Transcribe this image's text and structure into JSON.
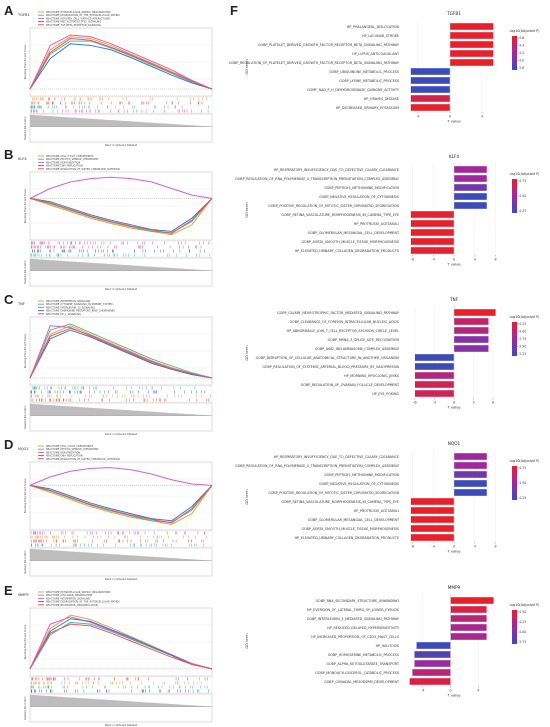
{
  "panel_letters": [
    "A",
    "B",
    "C",
    "D",
    "E",
    "F"
  ],
  "colors": {
    "gsea_lines": [
      "#e8a33d",
      "#4cb8a8",
      "#d65fd0",
      "#3c78c8",
      "#e55a5a"
    ],
    "bar_gradient": [
      "#e8202c",
      "#a0289c",
      "#3c4bb8"
    ]
  },
  "chart_data": [
    {
      "type": "line",
      "panel": "A",
      "title": "TGFB1",
      "ylabel_top": "Running Enrichment Score",
      "ylabel_bottom": "Ranked list metric",
      "xlabel": "Rank in Ordered Dataset",
      "legend_position": "top-left",
      "series": [
        {
          "name": "REACTOME_EXTRACELLULAR_MATRIX_ORGANIZATION",
          "values": [
            0,
            0.45,
            0.6,
            0.58,
            0.5,
            0.4,
            0.3,
            0.2,
            0.1,
            0
          ]
        },
        {
          "name": "REACTOME_DEGRADATION_OF_THE_EXTRACELLULAR_MATRIX",
          "values": [
            0,
            0.4,
            0.55,
            0.55,
            0.47,
            0.38,
            0.28,
            0.18,
            0.08,
            0
          ]
        },
        {
          "name": "REACTOME_INTEGRIN_CELL_SURFACE_INTERACTIONS",
          "values": [
            0,
            0.5,
            0.62,
            0.6,
            0.52,
            0.42,
            0.32,
            0.22,
            0.1,
            0
          ]
        },
        {
          "name": "REACTOME_MET_ACTIVATES_PTK2_SIGNALING",
          "values": [
            0,
            0.35,
            0.52,
            0.5,
            0.45,
            0.36,
            0.26,
            0.16,
            0.07,
            0
          ]
        },
        {
          "name": "REACTOME_TGF_BETA_RECEPTOR_SIGNALING",
          "values": [
            0,
            0.42,
            0.58,
            0.56,
            0.48,
            0.39,
            0.29,
            0.19,
            0.09,
            0
          ]
        }
      ]
    },
    {
      "type": "line",
      "panel": "B",
      "title": "KLF4",
      "ylabel_top": "Running Enrichment Score",
      "ylabel_bottom": "Ranked list metric",
      "xlabel": "Rank in Ordered Dataset",
      "legend_position": "top-left",
      "series": [
        {
          "name": "REACTOME_CELL_CYCLE_CHECKPOINTS",
          "values": [
            0,
            -0.1,
            -0.2,
            -0.3,
            -0.38,
            -0.45,
            -0.5,
            -0.55,
            -0.4,
            0
          ]
        },
        {
          "name": "REACTOME_MITOTIC_SPINDLE_CHECKPOINT",
          "values": [
            0,
            -0.08,
            -0.18,
            -0.28,
            -0.36,
            -0.43,
            -0.5,
            -0.52,
            -0.35,
            0
          ]
        },
        {
          "name": "REACTOME_KERATINIZATION",
          "values": [
            0,
            0.15,
            0.25,
            0.3,
            0.32,
            0.3,
            0.25,
            0.15,
            0.05,
            0
          ]
        },
        {
          "name": "REACTOME_DNA_REPLICATION",
          "values": [
            0,
            -0.05,
            -0.15,
            -0.25,
            -0.33,
            -0.4,
            -0.47,
            -0.5,
            -0.3,
            0
          ]
        },
        {
          "name": "REACTOME_RESOLUTION_OF_SISTER_CHROMATID_COHESION",
          "values": [
            0,
            -0.07,
            -0.17,
            -0.27,
            -0.35,
            -0.42,
            -0.48,
            -0.53,
            -0.33,
            0
          ]
        }
      ]
    },
    {
      "type": "line",
      "panel": "C",
      "title": "TNF",
      "ylabel_top": "Running Enrichment Score",
      "ylabel_bottom": "Ranked list metric",
      "xlabel": "Rank in Ordered Dataset",
      "legend_position": "top-left",
      "series": [
        {
          "name": "REACTOME_INTERFERON_SIGNALING",
          "values": [
            0,
            0.5,
            0.6,
            0.5,
            0.4,
            0.3,
            0.2,
            0.12,
            0.05,
            0
          ]
        },
        {
          "name": "REACTOME_CYTOKINE_SIGNALING_IN_IMMUNE_SYSTEM",
          "values": [
            0,
            0.55,
            0.62,
            0.52,
            0.42,
            0.32,
            0.22,
            0.14,
            0.06,
            0
          ]
        },
        {
          "name": "REACTOME_INTERLEUKIN_10_SIGNALING",
          "values": [
            0,
            0.6,
            0.58,
            0.48,
            0.38,
            0.28,
            0.18,
            0.1,
            0.04,
            0
          ]
        },
        {
          "name": "REACTOME_CHEMOKINE_RECEPTORS_BIND_CHEMOKINES",
          "values": [
            0,
            0.45,
            0.55,
            0.47,
            0.37,
            0.27,
            0.17,
            0.1,
            0.04,
            0
          ]
        },
        {
          "name": "REACTOME_PD_1_SIGNALING",
          "values": [
            0,
            0.48,
            0.57,
            0.49,
            0.39,
            0.29,
            0.19,
            0.11,
            0.05,
            0
          ]
        }
      ]
    },
    {
      "type": "line",
      "panel": "D",
      "title": "NQO1",
      "ylabel_top": "Running Enrichment Score",
      "ylabel_bottom": "Ranked list metric",
      "xlabel": "Rank in Ordered Dataset",
      "legend_position": "top-left",
      "series": [
        {
          "name": "REACTOME_CELL_CYCLE_CHECKPOINTS",
          "values": [
            0,
            -0.1,
            -0.2,
            -0.3,
            -0.38,
            -0.45,
            -0.5,
            -0.55,
            -0.4,
            0
          ]
        },
        {
          "name": "REACTOME_MITOTIC_SPINDLE_CHECKPOINT",
          "values": [
            0,
            -0.08,
            -0.18,
            -0.28,
            -0.36,
            -0.43,
            -0.5,
            -0.52,
            -0.35,
            0
          ]
        },
        {
          "name": "REACTOME_KERATINIZATION",
          "values": [
            0,
            0.12,
            0.2,
            0.24,
            0.25,
            0.22,
            0.16,
            0.08,
            0.02,
            0
          ]
        },
        {
          "name": "REACTOME_DNA_REPLICATION",
          "values": [
            0,
            -0.05,
            -0.15,
            -0.25,
            -0.33,
            -0.4,
            -0.47,
            -0.5,
            -0.3,
            0
          ]
        },
        {
          "name": "REACTOME_RESOLUTION_OF_SISTER_CHROMATID_COHESION",
          "values": [
            0,
            -0.07,
            -0.17,
            -0.27,
            -0.35,
            -0.42,
            -0.48,
            -0.53,
            -0.33,
            0
          ]
        }
      ]
    },
    {
      "type": "line",
      "panel": "E",
      "title": "MMP9",
      "ylabel_top": "Running Enrichment Score",
      "ylabel_bottom": "Ranked list metric",
      "xlabel": "Rank in Ordered Dataset",
      "legend_position": "top-left",
      "series": [
        {
          "name": "REACTOME_EXTRACELLULAR_MATRIX_ORGANIZATION",
          "values": [
            0,
            0.45,
            0.6,
            0.55,
            0.46,
            0.36,
            0.26,
            0.16,
            0.06,
            0
          ]
        },
        {
          "name": "REACTOME_COLLAGEN_DEGRADATION",
          "values": [
            0,
            0.38,
            0.52,
            0.5,
            0.42,
            0.33,
            0.24,
            0.15,
            0.05,
            0
          ]
        },
        {
          "name": "REACTOME_INTERFERON_SIGNALING",
          "values": [
            0,
            0.5,
            0.58,
            0.52,
            0.43,
            0.34,
            0.25,
            0.16,
            0.06,
            0
          ]
        },
        {
          "name": "REACTOME_DEGRADATION_OF_THE_EXTRACELLULAR_MATRIX",
          "values": [
            0,
            0.42,
            0.56,
            0.53,
            0.44,
            0.35,
            0.25,
            0.15,
            0.05,
            0
          ]
        },
        {
          "name": "REACTOME_NEUTROPHIL_DEGRANULATION",
          "values": [
            0,
            0.4,
            0.5,
            0.48,
            0.4,
            0.31,
            0.22,
            0.13,
            0.05,
            0
          ]
        }
      ]
    },
    {
      "type": "bar",
      "panel": "F",
      "title": "TGFB1",
      "xlabel": "T value",
      "ylabel": "GO term",
      "legend_title": "-log10(Adjusted P)",
      "legend_ticks": [
        "4.6",
        "4.4",
        "4.2",
        "4.0",
        "3.8"
      ],
      "xticks": [
        "-4",
        "0",
        "4"
      ],
      "xlim": [
        -6,
        7
      ],
      "categories": [
        "HP_PHALANGEAL_DISLOCATION",
        "HP_LACUNAR_STROKE",
        "GOBP_PLATELET_DERIVED_GROWTH_FACTOR_RECEPTOR_BETA_SIGNALING_PATHWAY",
        "HP_LUPUS_ANTICOAGULANT",
        "GOBP_REGULATION_OF_PLATELET_DERIVED_GROWTH_FACTOR_RECEPTOR_BETA_SIGNALING_PATHWAY",
        "GOBP_UBIQUINONE_METABOLIC_PROCESS",
        "GOBP_LYSINE_METABOLIC_PROCESS",
        "GOMF_NAD_P_H_DEHYDROGENASE_QUINONE_ACTIVITY",
        "HP_GRAVES_DISEASE",
        "HP_DECREASED_URINARY_POTASSIUM"
      ],
      "values": [
        5.4,
        5.4,
        5.4,
        5.4,
        5.4,
        -4.9,
        -4.9,
        -4.9,
        -4.9,
        -4.9
      ],
      "color_values": [
        4.6,
        4.6,
        4.6,
        4.6,
        4.6,
        3.9,
        3.9,
        3.9,
        4.5,
        4.6
      ]
    },
    {
      "type": "bar",
      "panel": "F",
      "title": "KLF4",
      "xlabel": "T value",
      "ylabel": "GO term",
      "legend_title": "-log10(Adjusted P)",
      "legend_ticks": [
        "4.75",
        "4.50",
        "4.25"
      ],
      "xticks": [
        "-8",
        "-4",
        "0",
        "4",
        "8"
      ],
      "xlim": [
        -10,
        10
      ],
      "categories": [
        "HP_RESPIRATORY_INSUFFICIENCY_DUE_TO_DEFECTIVE_CILIARY_CLEARANCE",
        "GOBP_REGULATION_OF_RNA_POLYMERASE_II_TRANSCRIPTION_PREINITIATION_COMPLEX_ASSEMBLY",
        "GOBP_PEPTIDYL_METHIONINE_MODIFICATION",
        "GOBP_NEGATIVE_REGULATION_OF_CYTOKINESIS",
        "GOBP_POSITIVE_REGULATION_OF_MITOTIC_SISTER_CHROMATID_SEGREGATION",
        "GOBP_RETINA_VASCULATURE_MORPHOGENESIS_IN_CAMERA_TYPE_EYE",
        "HP_PROTRUSIO_ACETABULI",
        "GOBP_GLOMERULAR_MESANGIAL_CELL_DEVELOPMENT",
        "GOBP_AORTA_SMOOTH_MUSCLE_TISSUE_MORPHOGENESIS",
        "HP_ELEVATED_URINARY_COLLAGEN_DEGRADATION_PRODUCTS"
      ],
      "values": [
        6.3,
        6.3,
        6.3,
        6.3,
        6.3,
        -8.3,
        -8.3,
        -8.3,
        -8.3,
        -8.3
      ],
      "color_values": [
        4.5,
        4.5,
        4.3,
        4.1,
        4.1,
        4.9,
        4.9,
        4.9,
        4.9,
        4.9
      ]
    },
    {
      "type": "bar",
      "panel": "F",
      "title": "TNF",
      "xlabel": "T value",
      "ylabel": "GO term",
      "legend_title": "-log10(Adjusted P)",
      "legend_ticks": [
        "4.25",
        "4.00",
        "3.75",
        "3.50",
        "3.25"
      ],
      "xticks": [
        "-6",
        "-3",
        "0",
        "3",
        "6"
      ],
      "xlim": [
        -8,
        8
      ],
      "categories": [
        "GOBP_CILIARY_NEUROTROPHIC_FACTOR_MEDIATED_SIGNALING_PATHWAY",
        "GOBP_CLEARANCE_OF_FOREIGN_INTRACELLULAR_NUCLEIC_ACIDS",
        "HP_ABNORMALLY_LOW_T_CELL_RECEPTOR_EXCISION_CIRCLE_LEVEL",
        "GOBP_MRNA_3_SPLICE_SITE_RECOGNITION",
        "GOBP_AIM2_INFLAMMASOME_COMPLEX_ASSEMBLY",
        "GOBP_DISRUPTION_OF_CELLULAR_ANATOMICAL_STRUCTURE_IN_ANOTHER_ORGANISM",
        "GOBP_REGULATION_OF_SYSTEMIC_ARTERIAL_BLOOD_PRESSURE_BY_VASOPRESSIN",
        "HP_MORNING_MYOCLONIC_JERKS",
        "GOBP_REGULATION_OF_OVARIAN_FOLLICLE_DEVELOPMENT",
        "HP_EYE_POKING"
      ],
      "values": [
        6.4,
        5.3,
        5.3,
        5.3,
        5.3,
        -6.0,
        -6.0,
        -6.0,
        -6.0,
        -6.0
      ],
      "color_values": [
        4.3,
        4.0,
        3.9,
        3.6,
        3.6,
        3.2,
        3.2,
        3.9,
        4.1,
        4.1
      ]
    },
    {
      "type": "bar",
      "panel": "F",
      "title": "NQO1",
      "xlabel": "T value",
      "ylabel": "GO term",
      "legend_title": "-log10(Adjusted P)",
      "legend_ticks": [
        "4.75",
        "4.50",
        "4.25"
      ],
      "xticks": [
        "-8",
        "-4",
        "0",
        "4",
        "8"
      ],
      "xlim": [
        -10,
        10
      ],
      "categories": [
        "HP_RESPIRATORY_INSUFFICIENCY_DUE_TO_DEFECTIVE_CILIARY_CLEARANCE",
        "GOBP_REGULATION_OF_RNA_POLYMERASE_II_TRANSCRIPTION_PREINITIATION_COMPLEX_ASSEMBLY",
        "GOBP_PEPTIDYL_METHIONINE_MODIFICATION",
        "GOBP_NEGATIVE_REGULATION_OF_CYTOKINESIS",
        "GOBP_POSITIVE_REGULATION_OF_MITOTIC_SISTER_CHROMATID_SEGREGATION",
        "GOBP_RETINA_VASCULATURE_MORPHOGENESIS_IN_CAMERA_TYPE_EYE",
        "HP_PROTRUSIO_ACETABULI",
        "GOBP_GLOMERULAR_MESANGIAL_CELL_DEVELOPMENT",
        "GOBP_AORTA_SMOOTH_MUSCLE_TISSUE_MORPHOGENESIS",
        "HP_ELEVATED_URINARY_COLLAGEN_DEGRADATION_PRODUCTS"
      ],
      "values": [
        6.3,
        6.3,
        6.3,
        6.3,
        6.3,
        -8.3,
        -8.3,
        -8.3,
        -8.3,
        -8.3
      ],
      "color_values": [
        4.5,
        4.5,
        4.3,
        4.1,
        4.1,
        4.9,
        4.9,
        4.9,
        4.9,
        4.9
      ]
    },
    {
      "type": "bar",
      "panel": "F",
      "title": "MMP9",
      "xlabel": "T value",
      "ylabel": "GO term",
      "legend_title": "-log10(Adjusted P)",
      "legend_ticks": [
        "4.50",
        "4.25",
        "4.00",
        "3.75"
      ],
      "xticks": [
        "-4",
        "0",
        "4"
      ],
      "xlim": [
        -7,
        8
      ],
      "categories": [
        "GOBP_RNA_SECONDARY_STRUCTURE_UNWINDING",
        "HP_EVERSION_OF_LATERAL_THIRD_OF_LOWER_EYELIDS",
        "GOBP_INTERLEUKIN_5_MEDIATED_SIGNALING_PATHWAY",
        "HP_REDUCED_DELAYED_HYPERSENSITIVITY",
        "HP_INCREASED_PROPORTION_OF_CD25_MAST_CELLS",
        "HP_HALITOSIS",
        "GOBP_HOMOSERINE_METABOLIC_PROCESS",
        "GOBP_ALPHA_KETOGLUTARATE_TRANSPORT",
        "GOBP_MONOACYLGLYCEROL_CATABOLIC_PROCESS",
        "GOBP_GONADAL_MESODERM_DEVELOPMENT"
      ],
      "values": [
        6.2,
        5.2,
        5.2,
        5.2,
        5.2,
        -4.9,
        -5.2,
        -5.2,
        -5.5,
        -5.9
      ],
      "color_values": [
        4.6,
        4.5,
        4.3,
        4.2,
        4.2,
        3.7,
        3.8,
        4.1,
        4.3,
        4.5
      ]
    }
  ]
}
